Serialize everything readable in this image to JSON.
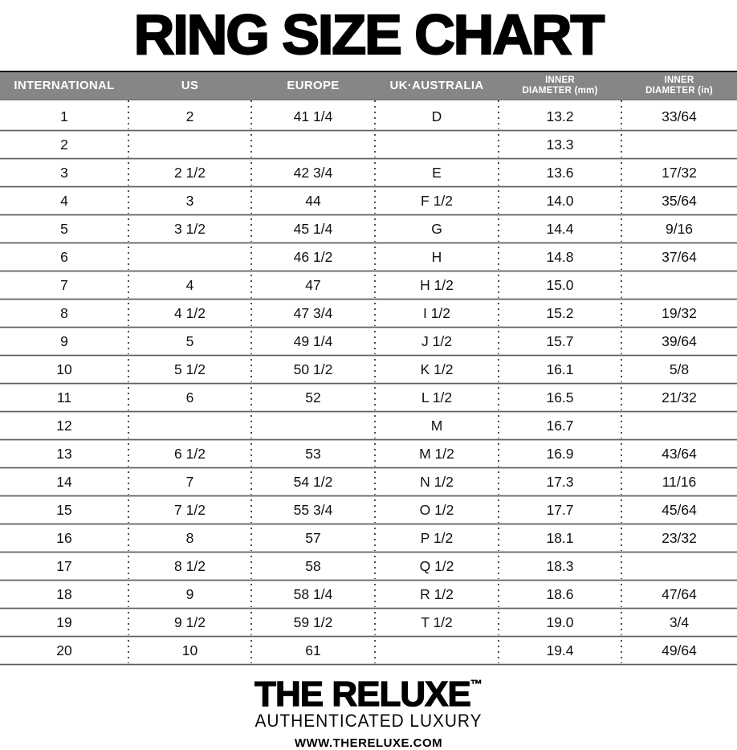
{
  "chart_data": {
    "type": "table",
    "title": "RING SIZE CHART",
    "columns": [
      "INTERNATIONAL",
      "US",
      "EUROPE",
      "UK·AUSTRALIA",
      "INNER DIAMETER (mm)",
      "INNER DIAMETER (in)"
    ],
    "rows": [
      [
        "1",
        "2",
        "41 1/4",
        "D",
        "13.2",
        "33/64"
      ],
      [
        "2",
        "",
        "",
        "",
        "13.3",
        ""
      ],
      [
        "3",
        "2 1/2",
        "42 3/4",
        "E",
        "13.6",
        "17/32"
      ],
      [
        "4",
        "3",
        "44",
        "F 1/2",
        "14.0",
        "35/64"
      ],
      [
        "5",
        "3 1/2",
        "45 1/4",
        "G",
        "14.4",
        "9/16"
      ],
      [
        "6",
        "",
        "46 1/2",
        "H",
        "14.8",
        "37/64"
      ],
      [
        "7",
        "4",
        "47",
        "H 1/2",
        "15.0",
        ""
      ],
      [
        "8",
        "4 1/2",
        "47 3/4",
        "I 1/2",
        "15.2",
        "19/32"
      ],
      [
        "9",
        "5",
        "49 1/4",
        "J 1/2",
        "15.7",
        "39/64"
      ],
      [
        "10",
        "5 1/2",
        "50 1/2",
        "K 1/2",
        "16.1",
        "5/8"
      ],
      [
        "11",
        "6",
        "52",
        "L 1/2",
        "16.5",
        "21/32"
      ],
      [
        "12",
        "",
        "",
        "M",
        "16.7",
        ""
      ],
      [
        "13",
        "6 1/2",
        "53",
        "M 1/2",
        "16.9",
        "43/64"
      ],
      [
        "14",
        "7",
        "54 1/2",
        "N 1/2",
        "17.3",
        "11/16"
      ],
      [
        "15",
        "7 1/2",
        "55 3/4",
        "O 1/2",
        "17.7",
        "45/64"
      ],
      [
        "16",
        "8",
        "57",
        "P 1/2",
        "18.1",
        "23/32"
      ],
      [
        "17",
        "8 1/2",
        "58",
        "Q 1/2",
        "18.3",
        ""
      ],
      [
        "18",
        "9",
        "58 1/4",
        "R 1/2",
        "18.6",
        "47/64"
      ],
      [
        "19",
        "9 1/2",
        "59 1/2",
        "T 1/2",
        "19.0",
        "3/4"
      ],
      [
        "20",
        "10",
        "61",
        "",
        "19.4",
        "49/64"
      ]
    ],
    "layout": {
      "grid": "solid horizontal row dividers, dotted vertical column separators",
      "legend_position": "none"
    }
  },
  "header": {
    "cells": [
      {
        "line1": "INTERNATIONAL",
        "line2": ""
      },
      {
        "line1": "US",
        "line2": ""
      },
      {
        "line1": "EUROPE",
        "line2": ""
      },
      {
        "line1": "UK·AUSTRALIA",
        "line2": ""
      },
      {
        "line1": "INNER",
        "line2": "DIAMETER (mm)"
      },
      {
        "line1": "INNER",
        "line2": "DIAMETER (in)"
      }
    ]
  },
  "footer": {
    "brand": "THE RELUXE",
    "trademark": "™",
    "tagline": "AUTHENTICATED LUXURY",
    "website": "WWW.THERELUXE.COM"
  },
  "colors": {
    "header_bg": "#868686",
    "header_text": "#ffffff",
    "body_text": "#111111",
    "divider": "#5e5e5e",
    "title_text": "#000000"
  }
}
